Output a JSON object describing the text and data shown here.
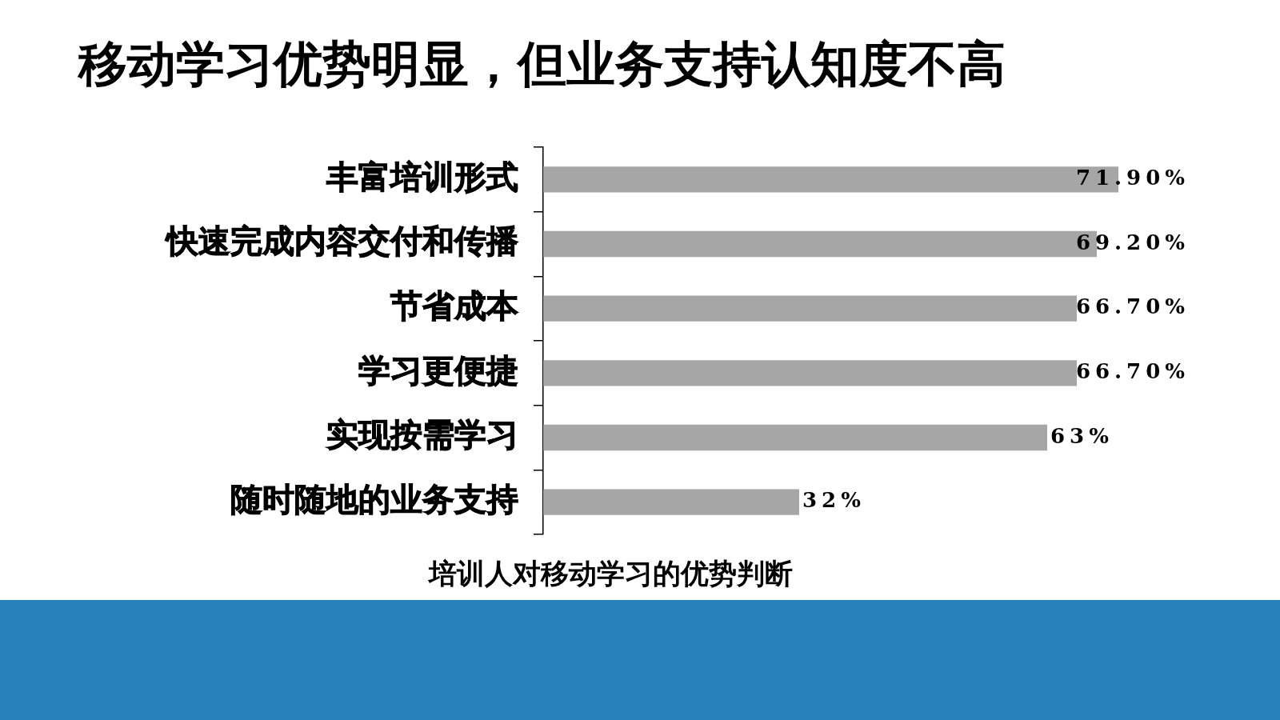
{
  "chart_data": {
    "type": "bar",
    "orientation": "horizontal",
    "title": "移动学习优势明显，但业务支持认知度不高",
    "categories": [
      "丰富培训形式",
      "快速完成内容交付和传播",
      "节省成本",
      "学习更便捷",
      "实现按需学习",
      "随时随地的业务支持"
    ],
    "values": [
      71.9,
      69.2,
      66.7,
      66.7,
      63,
      32
    ],
    "value_labels": [
      "71.90%",
      "69.20%",
      "66.70%",
      "66.70%",
      "63%",
      "32%"
    ],
    "color": "#a6a6a6",
    "annotations": [
      "培训人对移动学习的优势判断"
    ]
  }
}
